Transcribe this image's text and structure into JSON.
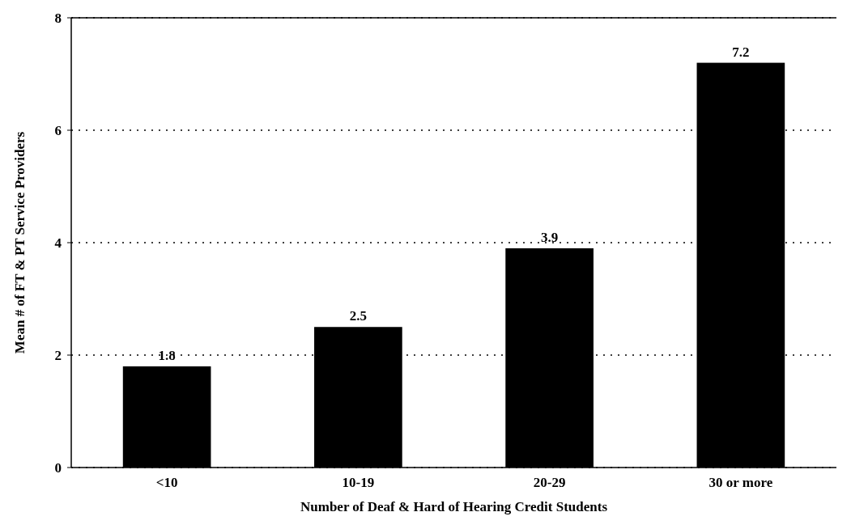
{
  "chart_data": {
    "type": "bar",
    "xlabel": "Number of Deaf & Hard of Hearing Credit Students",
    "ylabel": "Mean # of FT & PT Service Providers",
    "categories": [
      "<10",
      "10-19",
      "20-29",
      "30 or more"
    ],
    "values": [
      1.8,
      2.5,
      3.9,
      7.2
    ],
    "color": "#000000",
    "ylim": [
      0,
      8
    ],
    "yticks": [
      0,
      2,
      4,
      6,
      8
    ],
    "grid": "y",
    "data_labels": true
  }
}
